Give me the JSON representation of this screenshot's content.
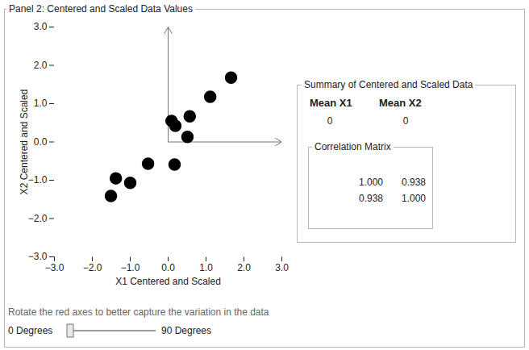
{
  "panel": {
    "title": "Panel 2: Centered and Scaled Data Values"
  },
  "chart_data": {
    "type": "scatter",
    "x_label": "X1 Centered and Scaled",
    "y_label": "X2 Centered and Scaled",
    "x": [
      -1.51,
      -1.38,
      -1.0,
      -0.53,
      0.17,
      0.09,
      0.19,
      0.57,
      0.51,
      1.11,
      1.66
    ],
    "values": [
      -1.41,
      -0.95,
      -1.07,
      -0.57,
      -0.59,
      0.55,
      0.42,
      0.67,
      0.13,
      1.18,
      1.68
    ],
    "color": "#000000",
    "marker": "circle",
    "xlim": [
      -3,
      3
    ],
    "xticks": [
      -3,
      -2,
      -1,
      0,
      1,
      2,
      3
    ],
    "ylim": [
      -3,
      3
    ],
    "yticks": [
      -3,
      -2,
      -1,
      0,
      1,
      2,
      3
    ],
    "grid": false
  },
  "summary": {
    "title": "Summary of Centered and Scaled Data",
    "headers": [
      "Mean X1",
      "Mean X2"
    ],
    "means": [
      0,
      0
    ],
    "correlation_matrix": {
      "title": "Correlation Matrix",
      "rows": [
        [
          "1.000",
          "0.938"
        ],
        [
          "0.938",
          "1.000"
        ]
      ]
    }
  },
  "slider": {
    "prompt": "Rotate the red axes to better capture the variation in the data",
    "min_label": "0 Degrees",
    "max_label": "90 Degrees",
    "min": 0,
    "max": 90,
    "value": 0
  }
}
